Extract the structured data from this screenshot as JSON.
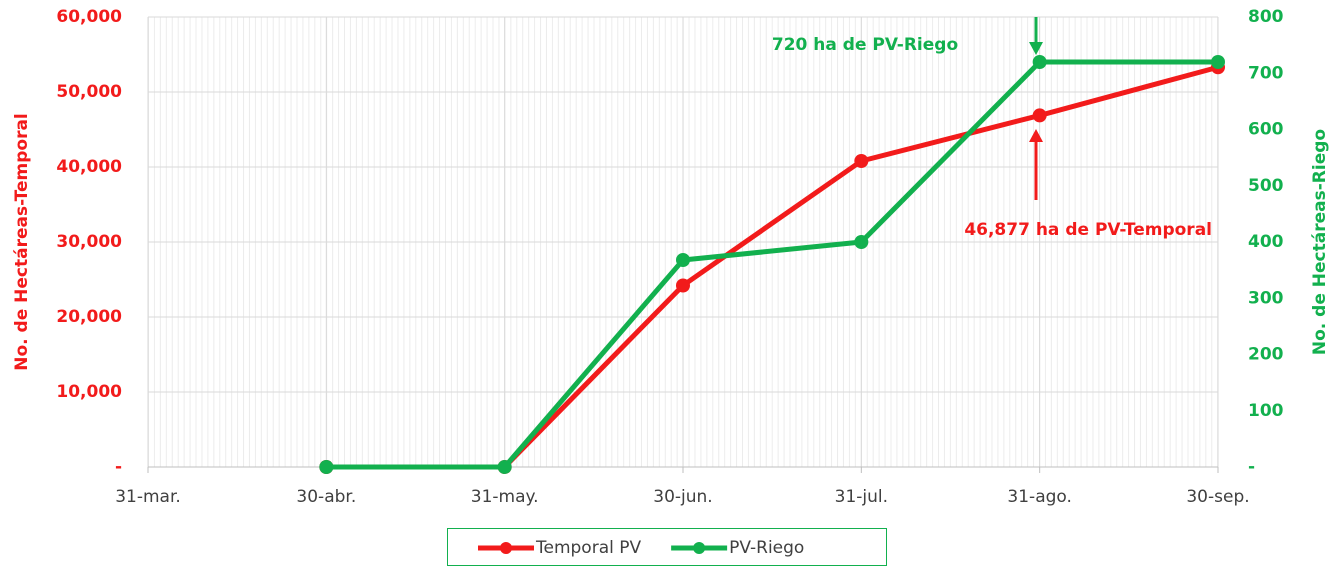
{
  "chart_data": {
    "type": "line",
    "categories": [
      "31-mar.",
      "30-abr.",
      "31-may.",
      "30-jun.",
      "31-jul.",
      "31-ago.",
      "30-sep."
    ],
    "series": [
      {
        "name": "Temporal PV",
        "color": "#f21b1b",
        "values": [
          null,
          0,
          0,
          24200,
          40800,
          46877,
          53300
        ]
      },
      {
        "name": "PV-Riego",
        "color": "#12b04e",
        "axis": "y2",
        "values": [
          null,
          0,
          0,
          368,
          400,
          720,
          720
        ]
      }
    ],
    "ylabel": "No. de Hectáreas-Temporal",
    "y2label": "No. de Hectáreas-Riego",
    "ylim": [
      0,
      60000
    ],
    "yticks": [
      {
        "value": 0,
        "label": "-"
      },
      {
        "value": 10000,
        "label": "10,000"
      },
      {
        "value": 20000,
        "label": "20,000"
      },
      {
        "value": 30000,
        "label": "30,000"
      },
      {
        "value": 40000,
        "label": "40,000"
      },
      {
        "value": 50000,
        "label": "50,000"
      },
      {
        "value": 60000,
        "label": "60,000"
      }
    ],
    "y2lim": [
      0,
      800
    ],
    "y2ticks": [
      {
        "value": 0,
        "label": "-"
      },
      100,
      200,
      300,
      400,
      500,
      600,
      700,
      800
    ],
    "annotations": [
      "720 ha de PV-Riego",
      "46,877 ha de PV-Temporal"
    ],
    "grid": true,
    "legend": "bottom"
  }
}
